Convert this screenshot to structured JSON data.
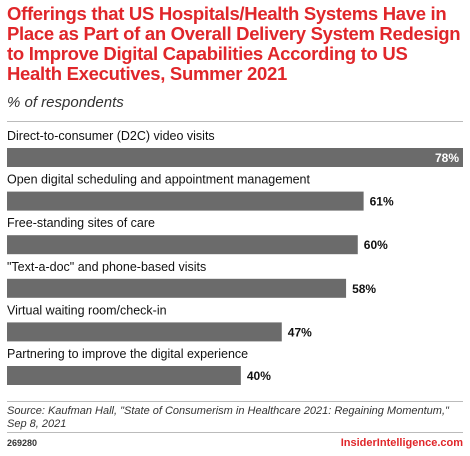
{
  "title": "Offerings that US Hospitals/Health Systems Have in Place as Part of an Overall Delivery System Redesign to Improve Digital Capabilities According to US Health Executives, Summer 2021",
  "subtitle": "% of respondents",
  "source": "Source: Kaufman Hall, \"State of Consumerism in Healthcare 2021: Regaining Momentum,\" Sep 8, 2021",
  "chart_id": "269280",
  "brand": "InsiderIntelligence.com",
  "colors": {
    "title": "#e0262a",
    "bar": "#6b6b6b",
    "brand": "#e0262a"
  },
  "chart_data": {
    "type": "bar",
    "orientation": "horizontal",
    "categories": [
      "Direct-to-consumer (D2C) video visits",
      "Open digital scheduling and appointment management",
      "Free-standing sites of care",
      "\"Text-a-doc\" and phone-based visits",
      "Virtual waiting room/check-in",
      "Partnering to improve the digital experience"
    ],
    "values": [
      78,
      61,
      60,
      58,
      47,
      40
    ],
    "value_labels": [
      "78%",
      "61%",
      "60%",
      "58%",
      "47%",
      "40%"
    ],
    "unit": "%",
    "xlim": [
      0,
      78
    ],
    "grid": false,
    "legend": "none"
  }
}
